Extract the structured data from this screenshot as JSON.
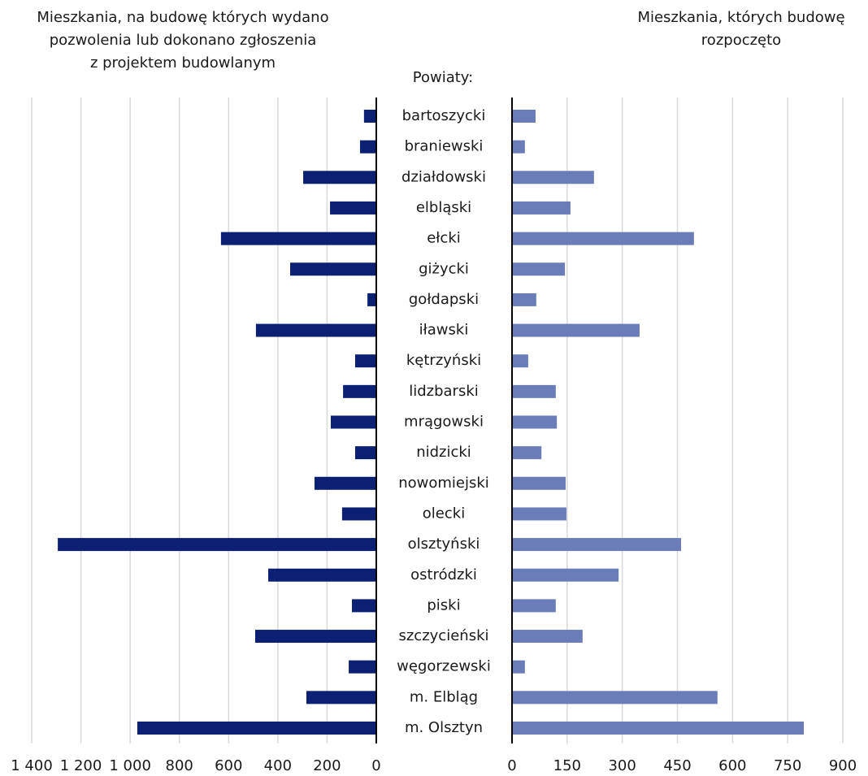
{
  "chart_data": {
    "type": "bar",
    "orientation": "horizontal",
    "category_axis_label": "Powiaty:",
    "categories": [
      "bartoszycki",
      "braniewski",
      "działdowski",
      "elbląski",
      "ełcki",
      "giżycki",
      "gołdapski",
      "iławski",
      "kętrzyński",
      "lidzbarski",
      "mrągowski",
      "nidzicki",
      "nowomiejski",
      "olecki",
      "olsztyński",
      "ostródzki",
      "piski",
      "szczycieński",
      "węgorzewski",
      "m. Elbląg",
      "m. Olsztyn"
    ],
    "grid": true,
    "series": [
      {
        "title": [
          "Mieszkania, na budowę których wydano",
          "pozwolenia lub dokonano zgłoszenia",
          "z projektem budowlanym"
        ],
        "color": "#0b1f73",
        "reversed": true,
        "values": [
          50,
          66,
          297,
          188,
          631,
          350,
          36,
          489,
          86,
          135,
          185,
          86,
          251,
          139,
          1294,
          439,
          99,
          492,
          112,
          284,
          971
        ],
        "xlim": [
          0,
          1400
        ],
        "xticks": [
          0,
          200,
          400,
          600,
          800,
          {
            "value": 1000,
            "label": "1 000"
          },
          {
            "value": 1200,
            "label": "1 200"
          },
          {
            "value": 1400,
            "label": "1 400"
          }
        ]
      },
      {
        "title": [
          "Mieszkania, których budowę",
          "rozpoczęto"
        ],
        "color": "#6a7db8",
        "reversed": false,
        "values": [
          64,
          35,
          223,
          159,
          495,
          144,
          66,
          347,
          44,
          119,
          122,
          80,
          146,
          148,
          460,
          290,
          119,
          192,
          35,
          559,
          794
        ],
        "xlim": [
          0,
          900
        ],
        "xticks": [
          0,
          150,
          300,
          450,
          600,
          750,
          900
        ]
      }
    ]
  }
}
